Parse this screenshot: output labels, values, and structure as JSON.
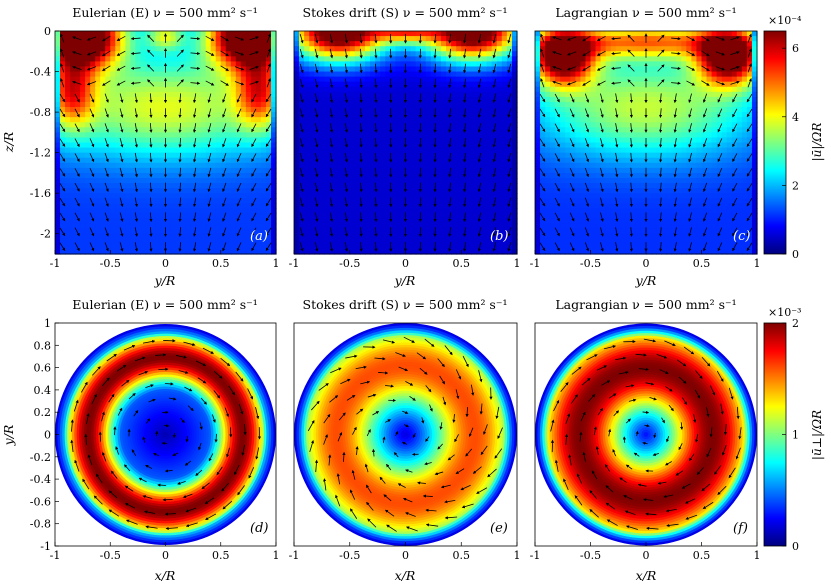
{
  "chart_data": [
    {
      "type": "heatmap",
      "panel": "a",
      "title": "Eulerian (E) ν = 500 mm² s⁻¹",
      "xlabel": "y/R",
      "ylabel": "z/R",
      "xlim": [
        -1,
        1
      ],
      "ylim": [
        -2.2,
        0
      ],
      "xticks": [
        "-1",
        "-0.5",
        "0",
        "0.5",
        "1"
      ],
      "yticks": [
        "0",
        "-0.4",
        "-0.8",
        "-1.2",
        "-1.6",
        "-2"
      ],
      "panel_label": "(a)",
      "peak_level": 1.0
    },
    {
      "type": "heatmap",
      "panel": "b",
      "title": "Stokes drift (S) ν = 500 mm² s⁻¹",
      "xlabel": "y/R",
      "xlim": [
        -1,
        1
      ],
      "ylim": [
        -2.2,
        0
      ],
      "xticks": [
        "-1",
        "-0.5",
        "0",
        "0.5",
        "1"
      ],
      "panel_label": "(b)",
      "peak_level": 1.0
    },
    {
      "type": "heatmap",
      "panel": "c",
      "title": "Lagrangian ν = 500 mm² s⁻¹",
      "xlabel": "y/R",
      "xlim": [
        -1,
        1
      ],
      "ylim": [
        -2.2,
        0
      ],
      "xticks": [
        "-1",
        "-0.5",
        "0",
        "0.5",
        "1"
      ],
      "panel_label": "(c)",
      "peak_level": 0.9,
      "colorbar": {
        "label": "|ū|/ΩR",
        "exponent": "×10⁻⁴",
        "range": [
          0,
          6.5
        ],
        "ticks": [
          "0",
          "2",
          "4",
          "6"
        ]
      }
    },
    {
      "type": "heatmap",
      "panel": "d",
      "title": "Eulerian (E) ν =   500 mm² s⁻¹",
      "xlabel": "x/R",
      "ylabel": "y/R",
      "xlim": [
        -1,
        1
      ],
      "ylim": [
        -1,
        1
      ],
      "xticks": [
        "-1",
        "-0.5",
        "0",
        "0.5",
        "1"
      ],
      "yticks": [
        "1",
        "0.8",
        "0.6",
        "0.4",
        "0.2",
        "0",
        "-0.2",
        "-0.4",
        "-0.6",
        "-0.8",
        "-1"
      ],
      "panel_label": "(d)",
      "ring_peak_radius": 0.7,
      "peak_level": 1.0
    },
    {
      "type": "heatmap",
      "panel": "e",
      "title": "Stokes drift (S) ν =   500 mm² s⁻¹",
      "xlabel": "x/R",
      "xlim": [
        -1,
        1
      ],
      "ylim": [
        -1,
        1
      ],
      "xticks": [
        "-1",
        "-0.5",
        "0",
        "0.5",
        "1"
      ],
      "panel_label": "(e)",
      "ring_peak_radius": 0.62,
      "peak_level": 0.8
    },
    {
      "type": "heatmap",
      "panel": "f",
      "title": "Lagrangian ν =   500 mm² s⁻¹",
      "xlabel": "x/R",
      "xlim": [
        -1,
        1
      ],
      "ylim": [
        -1,
        1
      ],
      "xticks": [
        "-1",
        "-0.5",
        "0",
        "0.5",
        "1"
      ],
      "panel_label": "(f)",
      "ring_peak_radius": 0.6,
      "peak_level": 1.0,
      "colorbar": {
        "label": "|ū⊥|/ΩR",
        "exponent": "×10⁻³",
        "range": [
          0,
          2
        ],
        "ticks": [
          "0",
          "1",
          "2"
        ]
      }
    }
  ],
  "colors": {
    "jet": [
      "#00007f",
      "#0000ff",
      "#007fff",
      "#00ffff",
      "#7fff7f",
      "#ffff00",
      "#ff7f00",
      "#ff0000",
      "#7f0000"
    ],
    "arrow": "#000000"
  }
}
